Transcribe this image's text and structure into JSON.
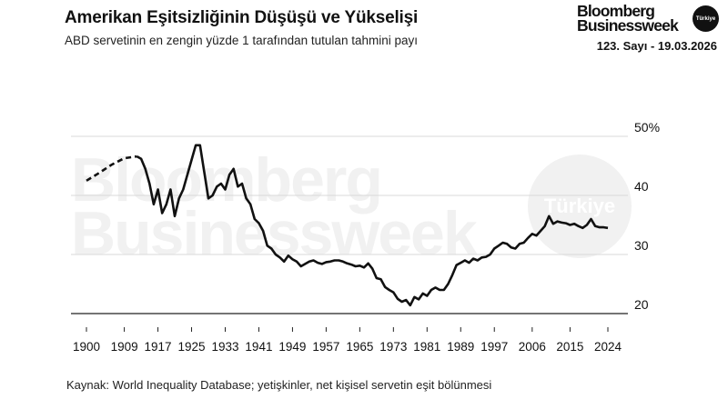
{
  "header": {
    "title": "Amerikan Eşitsizliğinin Düşüşü ve Yükselişi",
    "subtitle": "ABD servetinin en zengin yüzde 1 tarafından tutulan tahmini payı"
  },
  "brand": {
    "name_line1": "Bloomberg",
    "name_line2": "Businessweek",
    "badge": "Türkiye",
    "issue": "123. Sayı - 19.03.2026"
  },
  "watermark": {
    "line1": "Bloomberg",
    "line2": "Businessweek",
    "badge": "Türkiye"
  },
  "source": "Kaynak: World Inequality Database; yetişkinler, net kişisel servetin eşit bölünmesi",
  "colors": {
    "line": "#111111",
    "grid": "#d9d9d9",
    "watermark": "#f1f1f1"
  },
  "chart_data": {
    "type": "line",
    "title": "Amerikan Eşitsizliğinin Düşüşü ve Yükselişi",
    "subtitle": "ABD servetinin en zengin yüzde 1 tarafından tutulan tahmini payı",
    "xlabel": "",
    "ylabel": "",
    "xlim": [
      1900,
      2024
    ],
    "ylim": [
      20,
      50
    ],
    "x_ticks": [
      1900,
      1909,
      1917,
      1925,
      1933,
      1941,
      1949,
      1957,
      1965,
      1973,
      1981,
      1989,
      1997,
      2006,
      2015,
      2024
    ],
    "y_ticks": [
      20,
      30,
      40,
      50
    ],
    "y_tick_labels": [
      "20",
      "30",
      "40",
      "50%"
    ],
    "grid": {
      "horizontal": true,
      "vertical": false
    },
    "legend": "none",
    "estimated_segment": {
      "style": "dashed",
      "x": [
        1900,
        1903,
        1906,
        1909,
        1912
      ],
      "y": [
        42.5,
        43.8,
        45.2,
        46.3,
        46.6
      ]
    },
    "series": [
      {
        "x": [
          1912,
          1913,
          1914,
          1915,
          1916,
          1917,
          1918,
          1919,
          1920,
          1921,
          1922,
          1923,
          1924,
          1925,
          1926,
          1927,
          1928,
          1929,
          1930,
          1931,
          1932,
          1933,
          1934,
          1935,
          1936,
          1937,
          1938,
          1939,
          1940,
          1941,
          1942,
          1943,
          1944,
          1945,
          1946,
          1947,
          1948,
          1949,
          1950,
          1951,
          1952,
          1953,
          1954,
          1955,
          1956,
          1957,
          1958,
          1959,
          1960,
          1961,
          1962,
          1963,
          1964,
          1965,
          1966,
          1967,
          1968,
          1969,
          1970,
          1971,
          1972,
          1973,
          1974,
          1975,
          1976,
          1977,
          1978,
          1979,
          1980,
          1981,
          1982,
          1983,
          1984,
          1985,
          1986,
          1987,
          1988,
          1989,
          1990,
          1991,
          1992,
          1993,
          1994,
          1995,
          1996,
          1997,
          1998,
          1999,
          2000,
          2001,
          2002,
          2003,
          2004,
          2005,
          2006,
          2007,
          2008,
          2009,
          2010,
          2011,
          2012,
          2013,
          2014,
          2015,
          2016,
          2017,
          2018,
          2019,
          2020,
          2021,
          2022,
          2023,
          2024
        ],
        "y": [
          46.6,
          46.2,
          44.5,
          42.0,
          38.5,
          41.0,
          37.0,
          38.5,
          41.0,
          36.5,
          39.5,
          41.0,
          43.5,
          46.0,
          48.5,
          48.5,
          44.0,
          39.5,
          40.0,
          41.5,
          42.0,
          41.0,
          43.5,
          44.5,
          41.5,
          42.0,
          39.5,
          38.5,
          36.0,
          35.3,
          34.0,
          31.5,
          31.0,
          30.0,
          29.5,
          28.8,
          29.8,
          29.2,
          28.8,
          28.0,
          28.4,
          28.8,
          29.0,
          28.6,
          28.4,
          28.7,
          28.8,
          29.0,
          29.0,
          28.8,
          28.5,
          28.3,
          28.0,
          28.1,
          27.8,
          28.5,
          27.6,
          26.0,
          25.8,
          24.5,
          24.0,
          23.6,
          22.5,
          22.0,
          22.3,
          21.4,
          22.8,
          22.4,
          23.4,
          23.0,
          24.0,
          24.4,
          24.0,
          24.0,
          25.0,
          26.5,
          28.2,
          28.6,
          29.0,
          28.6,
          29.3,
          29.0,
          29.5,
          29.6,
          30.0,
          31.0,
          31.5,
          32.0,
          31.8,
          31.2,
          31.0,
          31.8,
          32.0,
          32.8,
          33.5,
          33.2,
          34.0,
          34.8,
          36.5,
          35.2,
          35.6,
          35.4,
          35.3,
          35.0,
          35.2,
          34.8,
          34.5,
          35.0,
          36.0,
          34.8,
          34.6,
          34.6,
          34.5
        ]
      }
    ]
  }
}
